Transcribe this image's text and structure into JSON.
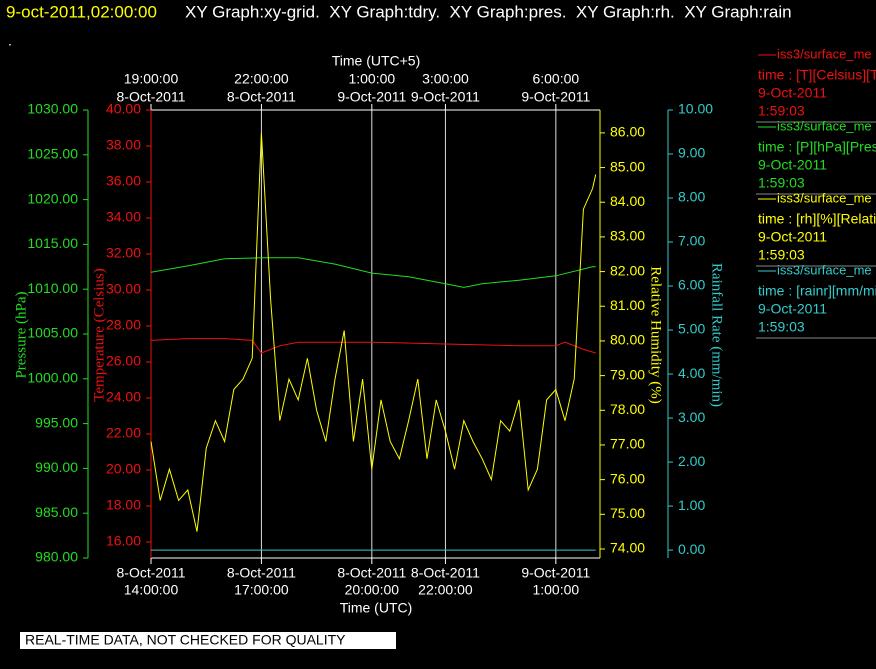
{
  "header": {
    "timestamp": "9-oct-2011,02:00:00",
    "graphs": "XY Graph:xy-grid.  XY Graph:tdry.  XY Graph:pres.  XY Graph:rh.  XY Graph:rain",
    "status": "."
  },
  "footer": {
    "notice": "REAL-TIME DATA, NOT CHECKED FOR QUALITY"
  },
  "chart_data": {
    "type": "line",
    "grid": true,
    "xlabel": "Time (UTC)",
    "x2label": "Time (UTC+5)",
    "xlim": [
      "2011-10-08T14:00",
      "2011-10-09T02:12"
    ],
    "xticks": [
      {
        "value": "2011-10-08T14:00",
        "label": [
          "8-Oct-2011",
          "14:00:00"
        ]
      },
      {
        "value": "2011-10-08T17:00",
        "label": [
          "8-Oct-2011",
          "17:00:00"
        ]
      },
      {
        "value": "2011-10-08T20:00",
        "label": [
          "8-Oct-2011",
          "20:00:00"
        ]
      },
      {
        "value": "2011-10-08T22:00",
        "label": [
          "8-Oct-2011",
          "22:00:00"
        ]
      },
      {
        "value": "2011-10-09T01:00",
        "label": [
          "9-Oct-2011",
          "1:00:00"
        ]
      }
    ],
    "x2lim": [
      "2011-10-08T19:00",
      "2011-10-09T07:12"
    ],
    "x2ticks": [
      {
        "value": "2011-10-08T19:00",
        "label": [
          "19:00:00",
          "8-Oct-2011"
        ]
      },
      {
        "value": "2011-10-08T22:00",
        "label": [
          "22:00:00",
          "8-Oct-2011"
        ]
      },
      {
        "value": "2011-10-09T01:00",
        "label": [
          "1:00:00",
          "9-Oct-2011"
        ]
      },
      {
        "value": "2011-10-09T03:00",
        "label": [
          "3:00:00",
          "9-Oct-2011"
        ]
      },
      {
        "value": "2011-10-09T06:00",
        "label": [
          "6:00:00",
          "9-Oct-2011"
        ]
      }
    ],
    "axes": [
      {
        "label": "Pressure (hPa)",
        "color": "#22dd22",
        "lim": [
          980,
          1030
        ],
        "ticks": [
          {
            "value": 980,
            "label": "980.00"
          },
          {
            "value": 985,
            "label": "985.00"
          },
          {
            "value": 990,
            "label": "990.00"
          },
          {
            "value": 995,
            "label": "995.00"
          },
          {
            "value": 1000,
            "label": "1000.00"
          },
          {
            "value": 1005,
            "label": "1005.00"
          },
          {
            "value": 1010,
            "label": "1010.00"
          },
          {
            "value": 1015,
            "label": "1015.00"
          },
          {
            "value": 1020,
            "label": "1020.00"
          },
          {
            "value": 1025,
            "label": "1025.00"
          },
          {
            "value": 1030,
            "label": "1030.00"
          }
        ]
      },
      {
        "label": "Temperature (Celsius)",
        "color": "#ee1111",
        "lim": [
          15.11,
          40
        ],
        "ticks": [
          {
            "value": 16,
            "label": "16.00"
          },
          {
            "value": 18,
            "label": "18.00"
          },
          {
            "value": 20,
            "label": "20.00"
          },
          {
            "value": 22,
            "label": "22.00"
          },
          {
            "value": 24,
            "label": "24.00"
          },
          {
            "value": 26,
            "label": "26.00"
          },
          {
            "value": 28,
            "label": "28.00"
          },
          {
            "value": 30,
            "label": "30.00"
          },
          {
            "value": 32,
            "label": "32.00"
          },
          {
            "value": 34,
            "label": "34.00"
          },
          {
            "value": 36,
            "label": "36.00"
          },
          {
            "value": 38,
            "label": "38.00"
          },
          {
            "value": 40,
            "label": "40.00"
          }
        ]
      },
      {
        "label": "Relative Humidity (%)",
        "color": "#ffff00",
        "lim": [
          73.74,
          86.66
        ],
        "ticks": [
          {
            "value": 74,
            "label": "74.00"
          },
          {
            "value": 75,
            "label": "75.00"
          },
          {
            "value": 76,
            "label": "76.00"
          },
          {
            "value": 77,
            "label": "77.00"
          },
          {
            "value": 78,
            "label": "78.00"
          },
          {
            "value": 79,
            "label": "79.00"
          },
          {
            "value": 80,
            "label": "80.00"
          },
          {
            "value": 81,
            "label": "81.00"
          },
          {
            "value": 82,
            "label": "82.00"
          },
          {
            "value": 83,
            "label": "83.00"
          },
          {
            "value": 84,
            "label": "84.00"
          },
          {
            "value": 85,
            "label": "85.00"
          },
          {
            "value": 86,
            "label": "86.00"
          }
        ]
      },
      {
        "label": "Rainfall Rate (mm/min)",
        "color": "#33cccc",
        "lim": [
          -0.18,
          10
        ],
        "ticks": [
          {
            "value": 0,
            "label": "0.00"
          },
          {
            "value": 1,
            "label": "1.00"
          },
          {
            "value": 2,
            "label": "2.00"
          },
          {
            "value": 3,
            "label": "3.00"
          },
          {
            "value": 4,
            "label": "4.00"
          },
          {
            "value": 5,
            "label": "5.00"
          },
          {
            "value": 6,
            "label": "6.00"
          },
          {
            "value": 7,
            "label": "7.00"
          },
          {
            "value": 8,
            "label": "8.00"
          },
          {
            "value": 9,
            "label": "9.00"
          },
          {
            "value": 10,
            "label": "10.00"
          }
        ]
      }
    ],
    "series": [
      {
        "name": "iss3/surface_me",
        "detail": "time : [T][Celsius][T",
        "date": "9-Oct-2011",
        "time": "1:59:03",
        "color": "#ee1111",
        "axis": 1,
        "x": [
          "2011-10-08T14:00",
          "2011-10-08T15:00",
          "2011-10-08T16:00",
          "2011-10-08T16:45",
          "2011-10-08T17:00",
          "2011-10-08T17:30",
          "2011-10-08T18:00",
          "2011-10-08T20:00",
          "2011-10-08T22:00",
          "2011-10-09T00:00",
          "2011-10-09T01:00",
          "2011-10-09T01:15",
          "2011-10-09T01:45",
          "2011-10-09T02:05"
        ],
        "values": [
          27.2,
          27.3,
          27.3,
          27.2,
          26.5,
          26.9,
          27.1,
          27.1,
          27.0,
          26.9,
          26.9,
          27.1,
          26.7,
          26.5
        ]
      },
      {
        "name": "iss3/surface_me",
        "detail": "time : [P][hPa][Pres",
        "date": "9-Oct-2011",
        "time": "1:59:03",
        "color": "#22dd22",
        "axis": 0,
        "x": [
          "2011-10-08T14:00",
          "2011-10-08T15:00",
          "2011-10-08T16:00",
          "2011-10-08T17:00",
          "2011-10-08T18:00",
          "2011-10-08T19:00",
          "2011-10-08T20:00",
          "2011-10-08T21:00",
          "2011-10-08T22:00",
          "2011-10-08T22:30",
          "2011-10-08T23:00",
          "2011-10-09T00:00",
          "2011-10-09T01:00",
          "2011-10-09T02:00",
          "2011-10-09T02:05"
        ],
        "values": [
          1011.9,
          1012.6,
          1013.4,
          1013.5,
          1013.5,
          1012.8,
          1011.8,
          1011.4,
          1010.6,
          1010.2,
          1010.6,
          1011.0,
          1011.5,
          1012.5,
          1012.5
        ]
      },
      {
        "name": "iss3/surface_me",
        "detail": "time : [rh][%][Relati",
        "date": "9-Oct-2011",
        "time": "1:59:03",
        "color": "#ffff00",
        "axis": 2,
        "x": [
          "2011-10-08T14:00",
          "2011-10-08T14:15",
          "2011-10-08T14:30",
          "2011-10-08T14:45",
          "2011-10-08T15:00",
          "2011-10-08T15:15",
          "2011-10-08T15:30",
          "2011-10-08T15:45",
          "2011-10-08T16:00",
          "2011-10-08T16:15",
          "2011-10-08T16:30",
          "2011-10-08T16:45",
          "2011-10-08T17:00",
          "2011-10-08T17:15",
          "2011-10-08T17:30",
          "2011-10-08T17:45",
          "2011-10-08T18:00",
          "2011-10-08T18:15",
          "2011-10-08T18:30",
          "2011-10-08T18:45",
          "2011-10-08T19:00",
          "2011-10-08T19:15",
          "2011-10-08T19:30",
          "2011-10-08T19:45",
          "2011-10-08T20:00",
          "2011-10-08T20:15",
          "2011-10-08T20:30",
          "2011-10-08T20:45",
          "2011-10-08T21:00",
          "2011-10-08T21:15",
          "2011-10-08T21:30",
          "2011-10-08T21:45",
          "2011-10-08T22:00",
          "2011-10-08T22:15",
          "2011-10-08T22:30",
          "2011-10-08T22:45",
          "2011-10-08T23:00",
          "2011-10-08T23:15",
          "2011-10-08T23:30",
          "2011-10-08T23:45",
          "2011-10-09T00:00",
          "2011-10-09T00:15",
          "2011-10-09T00:30",
          "2011-10-09T00:45",
          "2011-10-09T01:00",
          "2011-10-09T01:15",
          "2011-10-09T01:30",
          "2011-10-09T01:45",
          "2011-10-09T02:00",
          "2011-10-09T02:05"
        ],
        "values": [
          77.1,
          75.4,
          76.3,
          75.4,
          75.7,
          74.5,
          76.9,
          77.7,
          77.1,
          78.6,
          78.9,
          79.5,
          86.0,
          81.2,
          77.7,
          78.9,
          78.3,
          79.5,
          78.0,
          77.1,
          78.9,
          80.3,
          77.1,
          78.9,
          76.3,
          78.3,
          77.1,
          76.6,
          77.7,
          78.9,
          76.6,
          78.3,
          77.4,
          76.3,
          77.7,
          77.1,
          76.6,
          76.0,
          77.7,
          77.4,
          78.3,
          75.7,
          76.3,
          78.3,
          78.6,
          77.7,
          78.9,
          83.8,
          84.4,
          84.8
        ]
      },
      {
        "name": "iss3/surface_me",
        "detail": "time : [rainr][mm/mi",
        "date": "9-Oct-2011",
        "time": "1:59:03",
        "color": "#33cccc",
        "axis": 3,
        "x": [
          "2011-10-08T14:00",
          "2011-10-09T02:05"
        ],
        "values": [
          0,
          0
        ]
      }
    ]
  }
}
